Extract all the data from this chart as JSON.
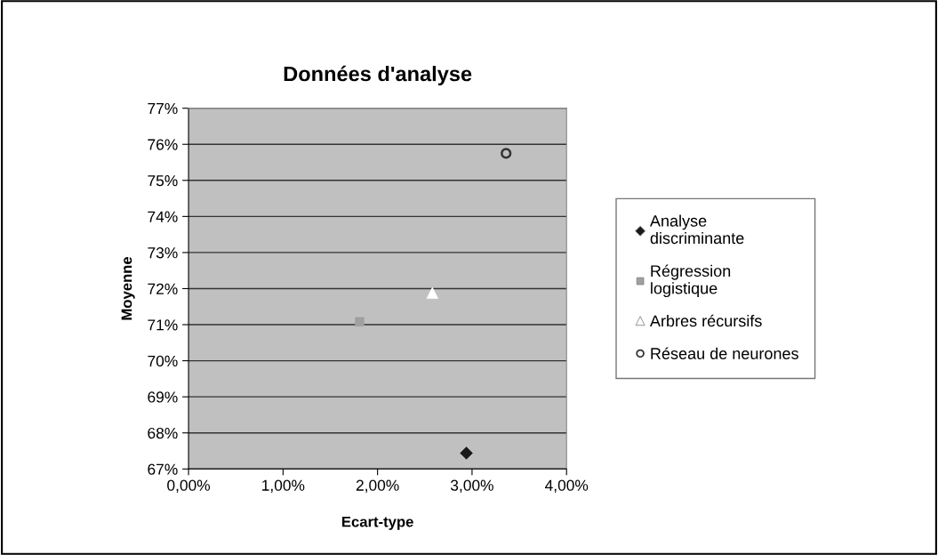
{
  "chart_data": {
    "type": "scatter",
    "title": "Données d'analyse",
    "xlabel": "Ecart-type",
    "ylabel": "Moyenne",
    "xlim": [
      0,
      4
    ],
    "xticks": [
      {
        "value": 0,
        "label": "0,00%"
      },
      {
        "value": 1,
        "label": "1,00%"
      },
      {
        "value": 2,
        "label": "2,00%"
      },
      {
        "value": 3,
        "label": "3,00%"
      },
      {
        "value": 4,
        "label": "4,00%"
      }
    ],
    "ylim": [
      67,
      77
    ],
    "yticks": [
      {
        "value": 67,
        "label": "67%"
      },
      {
        "value": 68,
        "label": "68%"
      },
      {
        "value": 69,
        "label": "69%"
      },
      {
        "value": 70,
        "label": "70%"
      },
      {
        "value": 71,
        "label": "71%"
      },
      {
        "value": 72,
        "label": "72%"
      },
      {
        "value": 73,
        "label": "73%"
      },
      {
        "value": 74,
        "label": "74%"
      },
      {
        "value": 75,
        "label": "75%"
      },
      {
        "value": 76,
        "label": "76%"
      },
      {
        "value": 77,
        "label": "77%"
      }
    ],
    "grid": "y",
    "legend": "right",
    "series": [
      {
        "name": "Analyse\ndiscriminante",
        "color": "#1a1a1a",
        "marker": "diamond",
        "x": [
          2.94
        ],
        "values": [
          67.44
        ]
      },
      {
        "name": "Régression\nlogistique",
        "color": "#a0a0a0",
        "marker": "square",
        "x": [
          1.81
        ],
        "values": [
          71.08
        ]
      },
      {
        "name": "Arbres récursifs",
        "color": "#ffffff",
        "marker": "triangle",
        "x": [
          2.58
        ],
        "values": [
          71.88
        ]
      },
      {
        "name": "Réseau de neurones",
        "color": "#333333",
        "marker": "circle",
        "x": [
          3.36
        ],
        "values": [
          75.75
        ]
      }
    ]
  }
}
